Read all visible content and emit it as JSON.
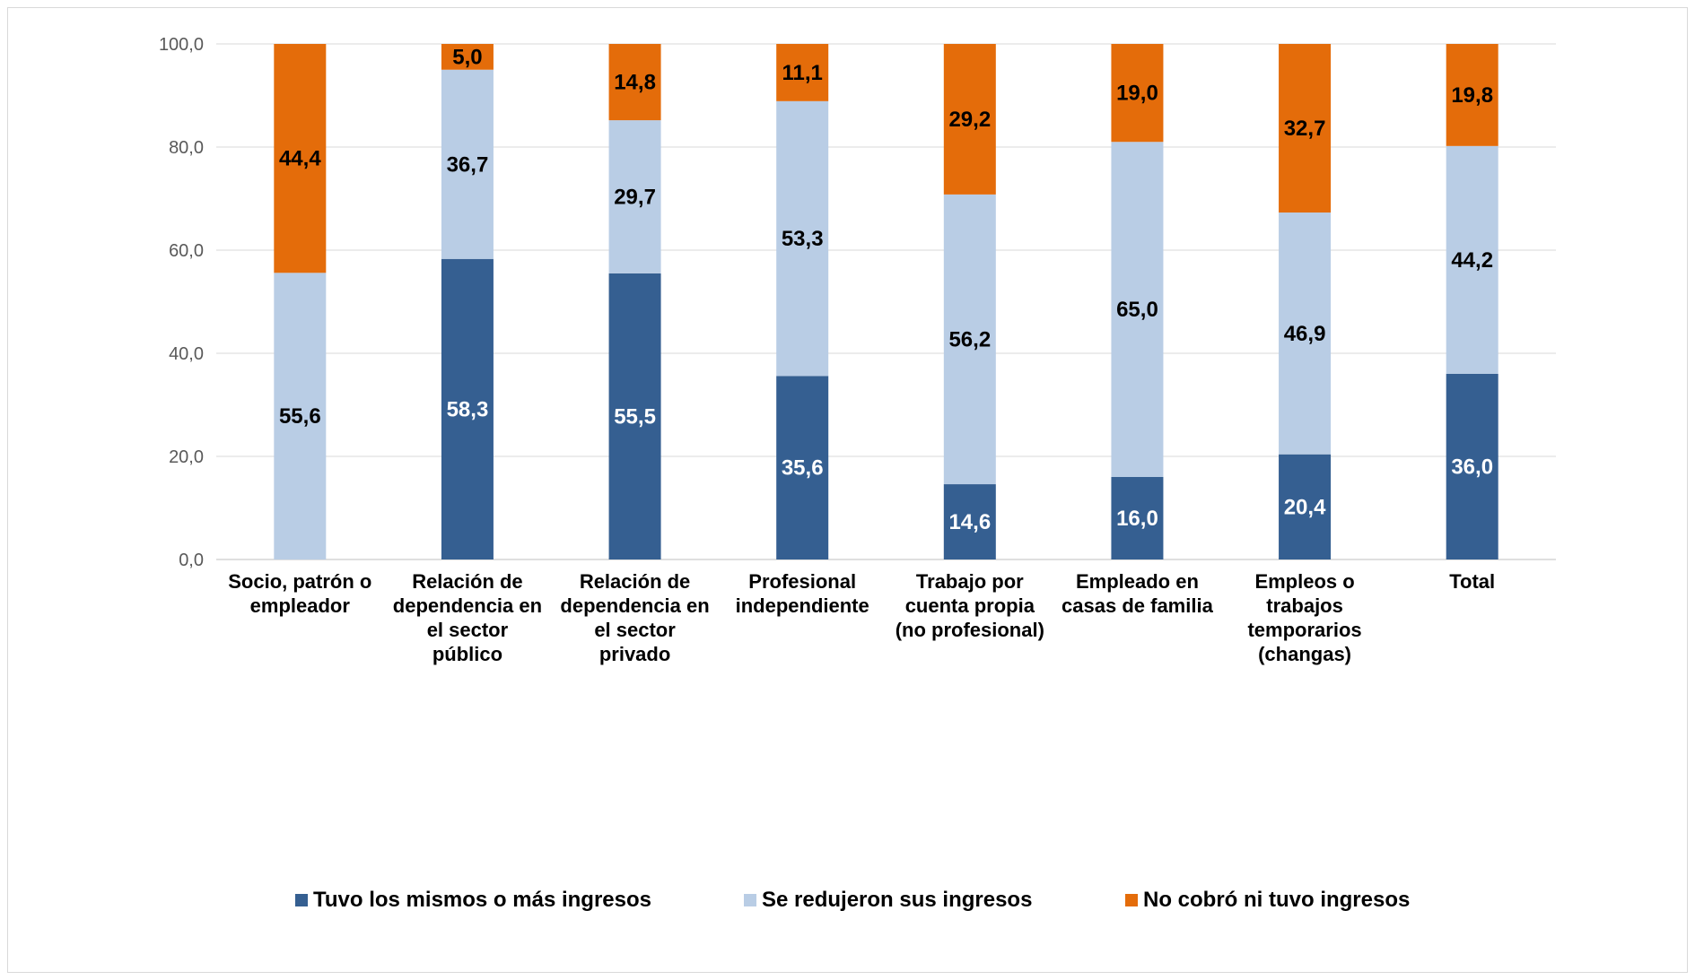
{
  "chart_data": {
    "type": "bar",
    "stacked": true,
    "categories": [
      [
        "Socio, patrón o",
        "empleador"
      ],
      [
        "Relación de",
        "dependencia en",
        "el sector",
        "público"
      ],
      [
        "Relación de",
        "dependencia en",
        "el sector",
        "privado"
      ],
      [
        "Profesional",
        "independiente"
      ],
      [
        "Trabajo por",
        "cuenta propia",
        "(no profesional)"
      ],
      [
        "Empleado en",
        "casas de familia"
      ],
      [
        "Empleos o",
        "trabajos",
        "temporarios",
        "(changas)"
      ],
      [
        "Total"
      ]
    ],
    "series": [
      {
        "name": "Tuvo los mismos o más ingresos",
        "color": "#355f91",
        "label_color": "#ffffff",
        "values": [
          null,
          58.3,
          55.5,
          35.6,
          14.6,
          16.0,
          20.4,
          36.0
        ]
      },
      {
        "name": "Se redujeron sus ingresos",
        "color": "#b9cde5",
        "label_color": "#000000",
        "values": [
          55.6,
          36.7,
          29.7,
          53.3,
          56.2,
          65.0,
          46.9,
          44.2
        ]
      },
      {
        "name": "No cobró ni tuvo ingresos",
        "color": "#e46c0a",
        "label_color": "#000000",
        "values": [
          44.4,
          5.0,
          14.8,
          11.1,
          29.2,
          19.0,
          32.7,
          19.8
        ]
      }
    ],
    "ylim": [
      0,
      100
    ],
    "yticks": [
      "0,0",
      "20,0",
      "40,0",
      "60,0",
      "80,0",
      "100,0"
    ],
    "ytick_values": [
      0,
      20,
      40,
      60,
      80,
      100
    ],
    "grid": true,
    "legend_position": "bottom",
    "decimal_separator": ","
  }
}
